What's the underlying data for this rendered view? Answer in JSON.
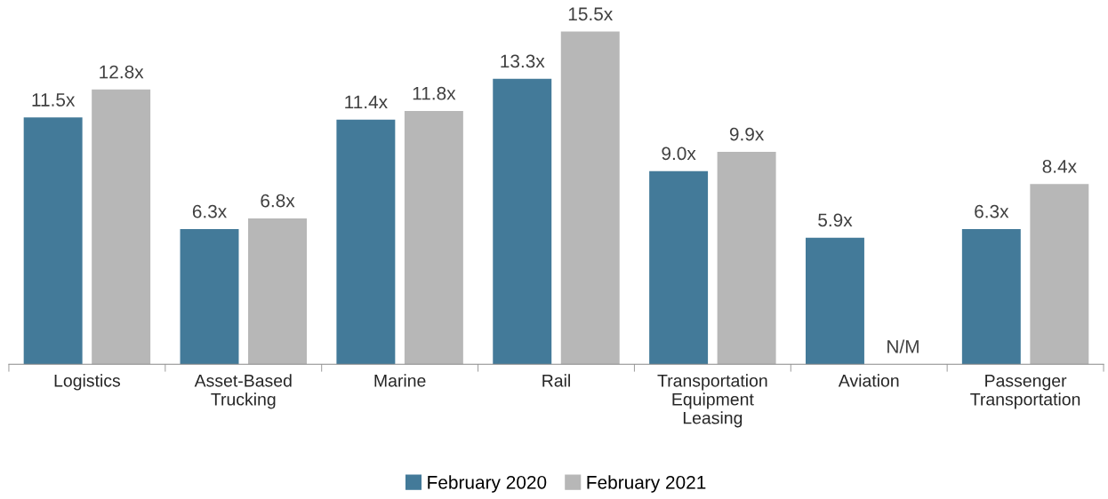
{
  "chart_data": {
    "type": "bar",
    "categories": [
      "Logistics",
      "Asset-Based\nTrucking",
      "Marine",
      "Rail",
      "Transportation\nEquipment\nLeasing",
      "Aviation",
      "Passenger\nTransportation"
    ],
    "series": [
      {
        "name": "February 2020",
        "color": "#437a99",
        "values": [
          11.5,
          6.3,
          11.4,
          13.3,
          9.0,
          5.9,
          6.3
        ],
        "value_labels": [
          "11.5x",
          "6.3x",
          "11.4x",
          "13.3x",
          "9.0x",
          "5.9x",
          "6.3x"
        ]
      },
      {
        "name": "February 2021",
        "color": "#b7b7b7",
        "values": [
          12.8,
          6.8,
          11.8,
          15.5,
          9.9,
          null,
          8.4
        ],
        "value_labels": [
          "12.8x",
          "6.8x",
          "11.8x",
          "15.5x",
          "9.9x",
          "N/M",
          "8.4x"
        ]
      }
    ],
    "tick_labels": "x",
    "legend": "bottom",
    "grid": false
  }
}
